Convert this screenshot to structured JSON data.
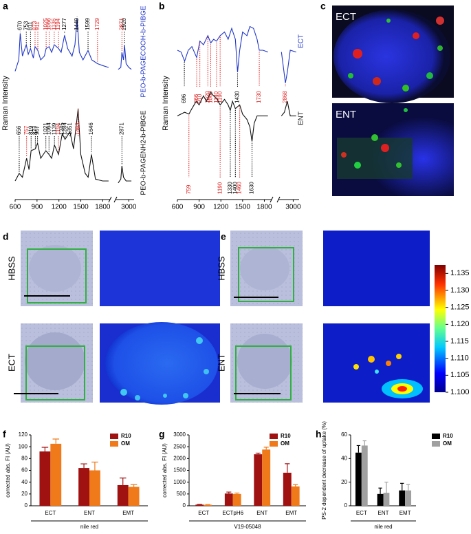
{
  "panel_labels": [
    "a",
    "b",
    "c",
    "d",
    "e",
    "f",
    "g",
    "h"
  ],
  "image_labels": {
    "c_top": "ECT",
    "c_bottom": "ENT",
    "d_top": "HBSS",
    "d_bottom": "ECT",
    "e_top": "HBSS",
    "e_bottom": "ENT"
  },
  "colorbar": {
    "lim": [
      1.1,
      1.1375
    ],
    "ticks": [
      {
        "value": 1.1,
        "label": "1.100"
      },
      1.105,
      {
        "value": 1.11,
        "label": "1.110"
      },
      1.115,
      {
        "value": 1.12,
        "label": "1.120"
      },
      1.125,
      {
        "value": 1.13,
        "label": "1.130"
      },
      1.135
    ]
  },
  "chart_data": [
    {
      "type": "spectrum",
      "y_label": "Raman Intensity",
      "xlim": [
        600,
        1900
      ],
      "x2lim": [
        2750,
        3100
      ],
      "xticks": [
        600,
        900,
        1200,
        1500,
        1800
      ],
      "x2ticks": [
        3000
      ],
      "ylim": [
        0,
        100
      ],
      "series": [
        {
          "name": "PEO-b-PAGECOOH-b-PIBGE",
          "color": "#1f35c8",
          "x": [
            600,
            650,
            670,
            700,
            753,
            780,
            811,
            850,
            873,
            911,
            950,
            1000,
            1025,
            1066,
            1100,
            1136,
            1194,
            1230,
            1277,
            1320,
            1380,
            1420,
            1449,
            1480,
            1530,
            1599,
            1650,
            1729,
            1800,
            1880,
            1900,
            2800,
            2850,
            2871,
            2900,
            2920,
            2950,
            3000,
            3050
          ],
          "values": [
            66,
            72,
            86,
            74,
            80,
            75,
            78,
            73,
            79,
            77,
            72,
            74,
            78,
            79,
            76,
            80,
            78,
            76,
            85,
            78,
            74,
            80,
            94,
            76,
            72,
            77,
            72,
            70,
            69,
            68,
            null,
            67,
            68,
            76,
            72,
            80,
            70,
            68,
            67
          ],
          "peaks": [
            {
              "x": 670,
              "color": "#000000"
            },
            {
              "x": 753,
              "color": "#000000"
            },
            {
              "x": 811,
              "color": "#000000"
            },
            {
              "x": 873,
              "color": "#e02020"
            },
            {
              "x": 911,
              "color": "#e02020"
            },
            {
              "x": 1025,
              "color": "#e02020"
            },
            {
              "x": 1066,
              "color": "#e02020"
            },
            {
              "x": 1136,
              "color": "#e02020"
            },
            {
              "x": 1194,
              "color": "#e02020"
            },
            {
              "x": 1277,
              "color": "#000000"
            },
            {
              "x": 1449,
              "color": "#000000"
            },
            {
              "x": 1599,
              "color": "#000000"
            },
            {
              "x": 1729,
              "color": "#e02020"
            },
            {
              "x": 2871,
              "color": "#e02020"
            },
            {
              "x": 2920,
              "color": "#000000"
            }
          ]
        },
        {
          "name": "PEO-b-PAGENH2-b-PIBGE",
          "color": "#111111",
          "x": [
            600,
            656,
            700,
            757,
            790,
            819,
            877,
            907,
            950,
            1021,
            1064,
            1100,
            1139,
            1194,
            1245,
            1284,
            1351,
            1400,
            1463,
            1500,
            1560,
            1600,
            1646,
            1700,
            1800,
            1880,
            1900,
            2800,
            2850,
            2871,
            2900,
            2950,
            3050
          ],
          "values": [
            8,
            12,
            10,
            20,
            14,
            24,
            25,
            28,
            20,
            24,
            22,
            20,
            27,
            22,
            33,
            30,
            34,
            25,
            46,
            22,
            12,
            10,
            22,
            9,
            8,
            8,
            null,
            7,
            9,
            16,
            10,
            8,
            8
          ],
          "peaks": [
            {
              "x": 656,
              "color": "#000000"
            },
            {
              "x": 757,
              "color": "#e02020"
            },
            {
              "x": 819,
              "color": "#000000"
            },
            {
              "x": 877,
              "color": "#000000"
            },
            {
              "x": 907,
              "color": "#000000"
            },
            {
              "x": 1021,
              "color": "#000000"
            },
            {
              "x": 1064,
              "color": "#000000"
            },
            {
              "x": 1139,
              "color": "#000000"
            },
            {
              "x": 1194,
              "color": "#e02020"
            },
            {
              "x": 1245,
              "color": "#000000"
            },
            {
              "x": 1284,
              "color": "#000000"
            },
            {
              "x": 1351,
              "color": "#000000"
            },
            {
              "x": 1463,
              "color": "#e02020"
            },
            {
              "x": 1646,
              "color": "#000000"
            },
            {
              "x": 2871,
              "color": "#000000"
            }
          ]
        }
      ]
    },
    {
      "type": "spectrum",
      "y_label": "Raman Intensity",
      "xlim": [
        600,
        1900
      ],
      "x2lim": [
        2750,
        3100
      ],
      "xticks": [
        600,
        900,
        1200,
        1500,
        1800
      ],
      "x2ticks": [
        3000
      ],
      "ylim": [
        0,
        100
      ],
      "series": [
        {
          "name": "ECT",
          "color": "#1f35c8",
          "x": [
            600,
            650,
            700,
            750,
            800,
            866,
            910,
            960,
            1020,
            1060,
            1100,
            1140,
            1190,
            1250,
            1300,
            1350,
            1400,
            1430,
            1460,
            1500,
            1560,
            1600,
            1650,
            1700,
            1730,
            1780,
            1850,
            1900,
            2800,
            2868,
            2900,
            2950,
            3050
          ],
          "values": [
            80,
            79,
            74,
            80,
            82,
            76,
            85,
            83,
            88,
            84,
            86,
            85,
            88,
            90,
            86,
            92,
            86,
            68,
            80,
            90,
            88,
            93,
            92,
            86,
            80,
            80,
            79,
            null,
            79,
            62,
            68,
            80,
            79
          ],
          "peaks": [
            {
              "x": 696,
              "color": "#000000"
            },
            {
              "x": 866,
              "color": "#e02020"
            },
            {
              "x": 910,
              "color": "#e02020"
            },
            {
              "x": 1020,
              "color": "#e02020"
            },
            {
              "x": 1060,
              "color": "#e02020"
            },
            {
              "x": 1140,
              "color": "#e02020"
            },
            {
              "x": 1190,
              "color": "#e02020"
            },
            {
              "x": 1430,
              "color": "#000000"
            },
            {
              "x": 1730,
              "color": "#e02020"
            },
            {
              "x": 2868,
              "color": "#e02020"
            }
          ]
        },
        {
          "name": "ENT",
          "color": "#111111",
          "x": [
            600,
            700,
            759,
            800,
            860,
            900,
            960,
            1000,
            1060,
            1100,
            1150,
            1190,
            1250,
            1300,
            1330,
            1360,
            1400,
            1460,
            1500,
            1560,
            1600,
            1630,
            1660,
            1700,
            1760,
            1850,
            1900,
            2800,
            2850,
            2900,
            2950,
            3050
          ],
          "values": [
            44,
            46,
            45,
            48,
            52,
            50,
            55,
            52,
            57,
            55,
            53,
            50,
            53,
            50,
            47,
            52,
            48,
            50,
            45,
            42,
            38,
            30,
            40,
            44,
            44,
            44,
            null,
            44,
            46,
            52,
            44,
            44
          ],
          "peaks": [
            {
              "x": 759,
              "color": "#e02020"
            },
            {
              "x": 1190,
              "color": "#e02020"
            },
            {
              "x": 1330,
              "color": "#000000"
            },
            {
              "x": 1400,
              "color": "#000000"
            },
            {
              "x": 1460,
              "color": "#e02020"
            },
            {
              "x": 1630,
              "color": "#000000"
            }
          ]
        }
      ]
    },
    {
      "type": "bar",
      "y_label": "corrected abs. FI (AU)",
      "x_label": "nile red",
      "categories": [
        "ECT",
        "ENT",
        "EMT"
      ],
      "ylim": [
        0,
        120
      ],
      "yticks": [
        0,
        20,
        40,
        60,
        80,
        100,
        120
      ],
      "series": [
        {
          "name": "R10",
          "color": "#a01212",
          "values": [
            92,
            64,
            35
          ],
          "errors": [
            7,
            7,
            12
          ]
        },
        {
          "name": "OM",
          "color": "#f07a1a",
          "values": [
            105,
            60,
            32
          ],
          "errors": [
            8,
            14,
            4
          ]
        }
      ]
    },
    {
      "type": "bar",
      "y_label": "corrected abs. FI (AU)",
      "x_label": "V19-05048",
      "categories": [
        "ECT",
        "ECTpH6",
        "ENT",
        "EMT"
      ],
      "ylim": [
        0,
        3000
      ],
      "yticks": [
        0,
        500,
        1000,
        1500,
        2000,
        2500,
        3000
      ],
      "series": [
        {
          "name": "R10",
          "color": "#a01212",
          "values": [
            50,
            520,
            2180,
            1400
          ],
          "errors": [
            10,
            60,
            50,
            380
          ]
        },
        {
          "name": "OM",
          "color": "#f07a1a",
          "values": [
            40,
            500,
            2380,
            820
          ],
          "errors": [
            10,
            40,
            100,
            80
          ]
        }
      ]
    },
    {
      "type": "bar",
      "y_label": "PS-2 dependent decrease of uptake (%)",
      "x_label": "nile red",
      "categories": [
        "ECT",
        "ENT",
        "EMT"
      ],
      "ylim": [
        0,
        60
      ],
      "yticks": [
        0,
        20,
        40,
        60
      ],
      "series": [
        {
          "name": "R10",
          "color": "#000000",
          "values": [
            45,
            10,
            13
          ],
          "errors": [
            6,
            5,
            6
          ]
        },
        {
          "name": "OM",
          "color": "#a0a0a0",
          "values": [
            51,
            11,
            13
          ],
          "errors": [
            4,
            9,
            5
          ]
        }
      ]
    }
  ]
}
